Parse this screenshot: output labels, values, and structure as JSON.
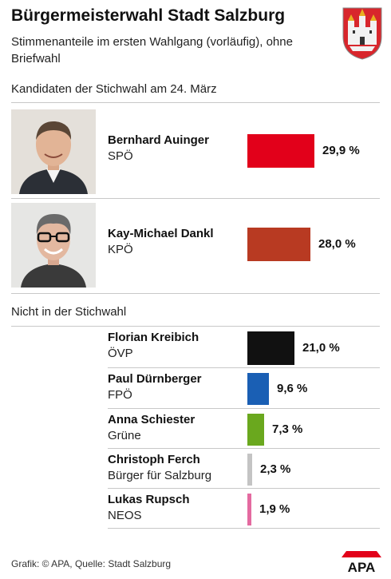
{
  "header": {
    "title": "Bürgermeisterwahl Stadt Salzburg",
    "subtitle": "Stimmenanteile im ersten Wahlgang (vorläufig), ohne Briefwahl"
  },
  "sections": {
    "runoff_label": "Kandidaten der Stichwahl am 24. März",
    "others_label": "Nicht in der Stichwahl"
  },
  "chart_data": {
    "type": "bar",
    "orientation": "horizontal",
    "categories": [
      "Bernhard Auinger",
      "Kay-Michael Dankl",
      "Florian Kreibich",
      "Paul Dürnberger",
      "Anna Schiester",
      "Christoph Ferch",
      "Lukas Rupsch"
    ],
    "parties": [
      "SPÖ",
      "KPÖ",
      "ÖVP",
      "FPÖ",
      "Grüne",
      "Bürger für Salzburg",
      "NEOS"
    ],
    "values": [
      29.9,
      28.0,
      21.0,
      9.6,
      7.3,
      2.3,
      1.9
    ],
    "labels": [
      "29,9 %",
      "28,0 %",
      "21,0 %",
      "9,6 %",
      "7,3 %",
      "2,3 %",
      "1,9 %"
    ],
    "colors": [
      "#e2001a",
      "#b83a22",
      "#111111",
      "#1a5fb4",
      "#6aa81e",
      "#c4c4c4",
      "#e46aa0"
    ],
    "ylim": [
      0,
      30
    ]
  },
  "footer": {
    "source": "Grafik: © APA, Quelle: Stadt Salzburg",
    "logo": "APA"
  },
  "icons": {
    "crest": "salzburg-coat-of-arms",
    "photo1": "candidate-photo-auinger",
    "photo2": "candidate-photo-dankl"
  }
}
